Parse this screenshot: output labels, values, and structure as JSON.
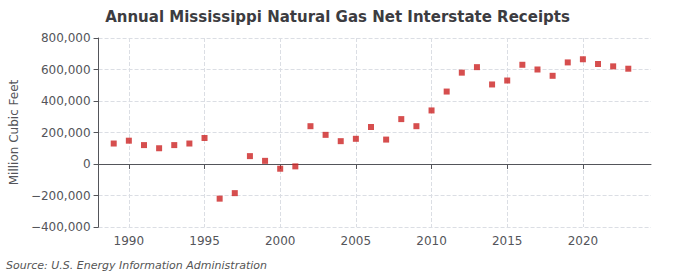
{
  "chart_data": {
    "type": "scatter",
    "title": "Annual Mississippi Natural Gas Net Interstate Receipts",
    "ylabel": "Million Cubic Feet",
    "annotation": "Source: U.S. Energy Information Administration",
    "x": [
      1989,
      1990,
      1991,
      1992,
      1993,
      1994,
      1995,
      1996,
      1997,
      1998,
      1999,
      2000,
      2001,
      2002,
      2003,
      2004,
      2005,
      2006,
      2007,
      2008,
      2009,
      2010,
      2011,
      2012,
      2013,
      2014,
      2015,
      2016,
      2017,
      2018,
      2019,
      2020,
      2021,
      2022,
      2023
    ],
    "values": [
      130000,
      148000,
      120000,
      100000,
      120000,
      130000,
      165000,
      -220000,
      -185000,
      50000,
      20000,
      -30000,
      -15000,
      240000,
      185000,
      145000,
      160000,
      235000,
      155000,
      285000,
      240000,
      340000,
      460000,
      580000,
      615000,
      505000,
      530000,
      630000,
      600000,
      560000,
      645000,
      665000,
      635000,
      620000,
      605000
    ],
    "color": "#cc2222",
    "marker": "square",
    "xlim": [
      1988.0,
      2024.5
    ],
    "xticks": [
      1990,
      1995,
      2000,
      2005,
      2010,
      2015,
      2020
    ],
    "ylim": [
      -400000,
      800000
    ],
    "yticks": [
      {
        "value": -400000,
        "label": "−400,000"
      },
      {
        "value": -200000,
        "label": "−200,000"
      },
      0,
      {
        "value": 200000,
        "label": "200,000"
      },
      {
        "value": 400000,
        "label": "400,000"
      },
      {
        "value": 600000,
        "label": "600,000"
      },
      {
        "value": 800000,
        "label": "800,000"
      }
    ],
    "grid": true
  }
}
